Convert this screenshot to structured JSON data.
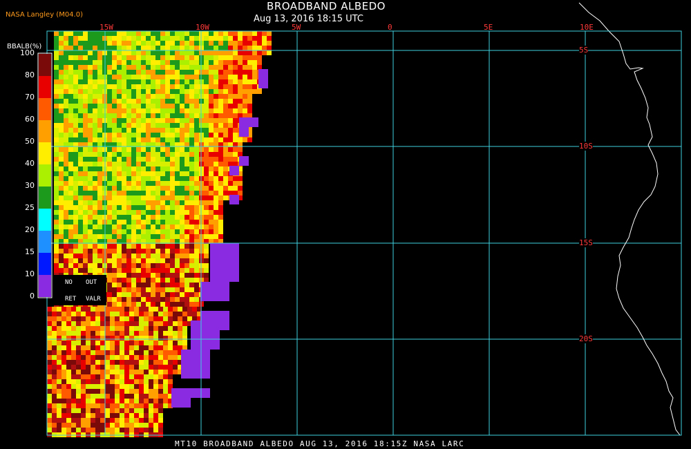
{
  "header": {
    "org": "NASA Langley (M04.0)",
    "title": "BROADBAND ALBEDO",
    "subtitle": "Aug 13, 2016 18:15 UTC"
  },
  "footer": {
    "text": "MT10  BROADBAND ALBEDO   AUG 13, 2016 18:15Z   NASA LARC"
  },
  "colorbar": {
    "title": "BBALB(%)",
    "labels": [
      "100",
      "80",
      "70",
      "60",
      "50",
      "40",
      "30",
      "25",
      "20",
      "15",
      "10",
      "0"
    ],
    "colors": [
      "#7a0a0a",
      "#e80000",
      "#ff5a00",
      "#ffa000",
      "#ffee00",
      "#aaf000",
      "#1c9a1c",
      "#00ffff",
      "#1e90ff",
      "#0018ff",
      "#8a2be2"
    ],
    "key": {
      "no": "NO",
      "out": "OUT",
      "ret": "RET",
      "valr": "VALR"
    }
  },
  "grid": {
    "lon_labels": [
      "15W",
      "10W",
      "5W",
      "0",
      "5E",
      "10E"
    ],
    "lat_labels": [
      "5S",
      "10S",
      "15S",
      "20S"
    ],
    "line_color": "#3fd0e0"
  },
  "data_colors": {
    "nodata": "#8a2be2",
    "coast": "#ffffff"
  }
}
